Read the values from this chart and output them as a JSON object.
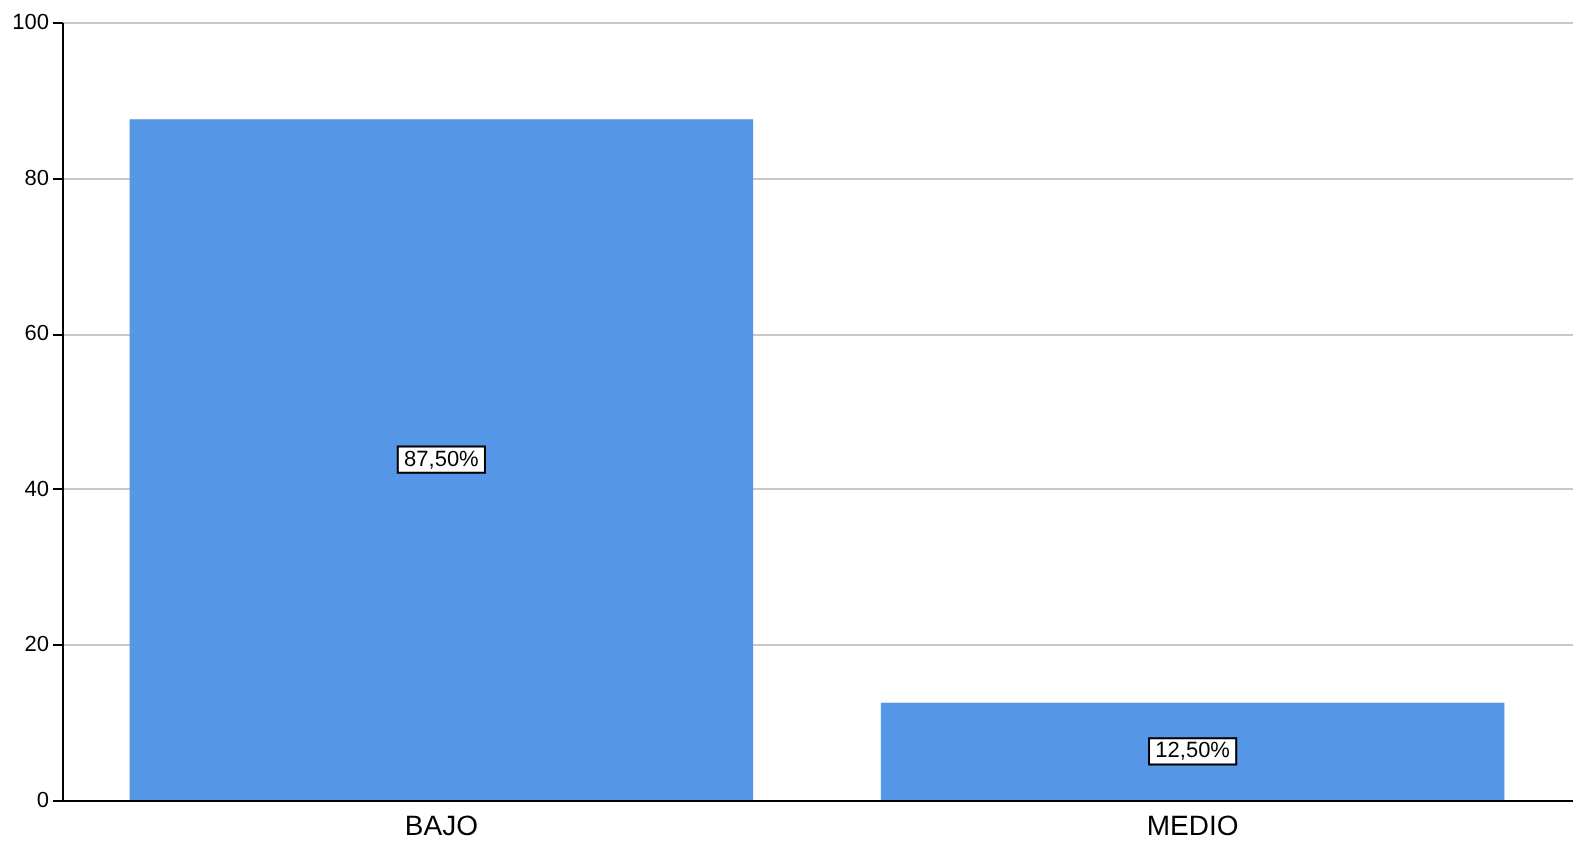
{
  "chart_data": {
    "type": "bar",
    "categories": [
      "BAJO",
      "MEDIO"
    ],
    "values": [
      87.5,
      12.5
    ],
    "value_labels": [
      "87,50%",
      "12,50%"
    ],
    "color": "#5596e6",
    "ylim": [
      0,
      100
    ],
    "yticks": [
      0,
      20,
      40,
      60,
      80,
      100
    ],
    "grid": "y"
  }
}
